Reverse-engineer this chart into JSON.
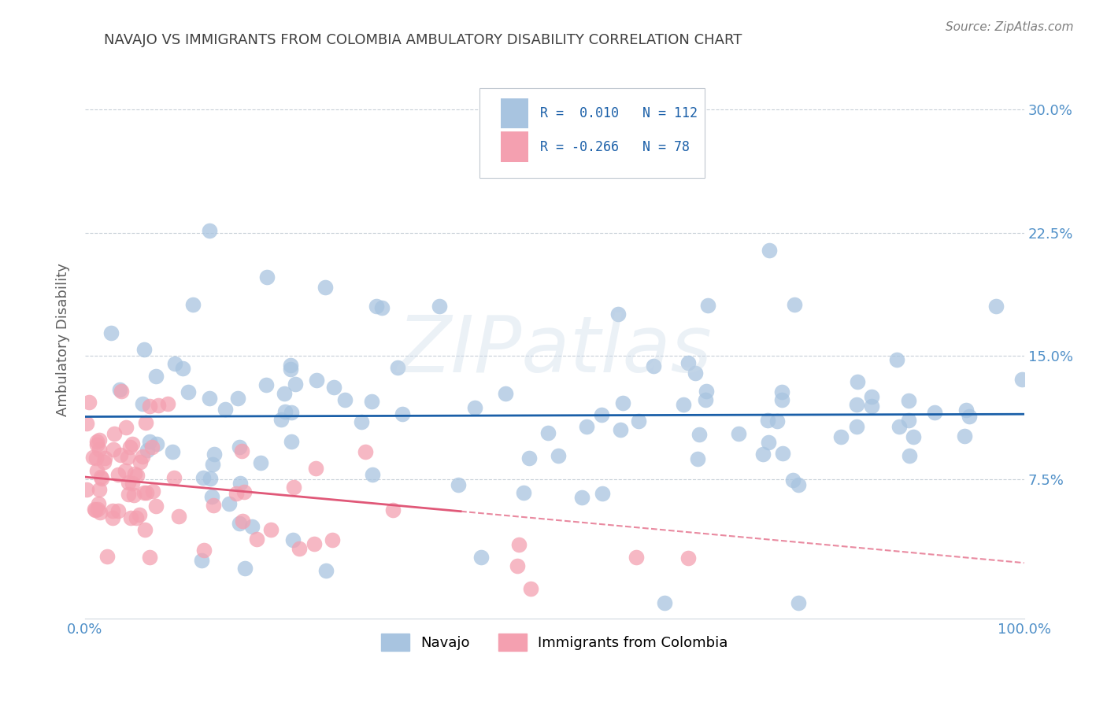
{
  "title": "NAVAJO VS IMMIGRANTS FROM COLOMBIA AMBULATORY DISABILITY CORRELATION CHART",
  "source": "Source: ZipAtlas.com",
  "ylabel": "Ambulatory Disability",
  "xlim": [
    0,
    1.0
  ],
  "ylim": [
    -0.01,
    0.33
  ],
  "yticks": [
    0.075,
    0.15,
    0.225,
    0.3
  ],
  "ytick_labels": [
    "7.5%",
    "15.0%",
    "22.5%",
    "30.0%"
  ],
  "navajo_R": 0.01,
  "navajo_N": 112,
  "colombia_R": -0.266,
  "colombia_N": 78,
  "navajo_color": "#a8c4e0",
  "colombia_color": "#f4a0b0",
  "navajo_line_color": "#1a5fa8",
  "colombia_line_color": "#e05878",
  "background_color": "#ffffff",
  "grid_color": "#c8d0d8",
  "title_color": "#404040",
  "axis_color": "#5090c8",
  "legend_label_navajo": "Navajo",
  "legend_label_colombia": "Immigrants from Colombia",
  "watermark": "ZIPatlas"
}
